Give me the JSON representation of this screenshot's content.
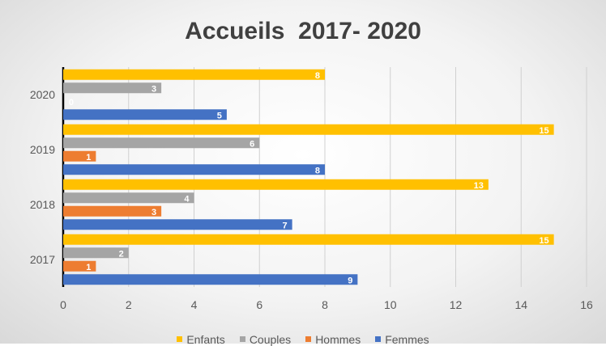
{
  "chart_data": {
    "type": "bar",
    "orientation": "horizontal",
    "title": "Accueils  2017- 2020",
    "categories": [
      "2017",
      "2018",
      "2019",
      "2020"
    ],
    "series": [
      {
        "name": "Femmes",
        "values": [
          9,
          7,
          8,
          5
        ],
        "color": "#4472c4"
      },
      {
        "name": "Hommes",
        "values": [
          1,
          3,
          1,
          0
        ],
        "color": "#ed7d31"
      },
      {
        "name": "Couples",
        "values": [
          2,
          4,
          6,
          3
        ],
        "color": "#a5a5a5"
      },
      {
        "name": "Enfants",
        "values": [
          15,
          13,
          15,
          8
        ],
        "color": "#ffc000"
      }
    ],
    "xlim": [
      0,
      16
    ],
    "xticks": [
      "0",
      "2",
      "4",
      "6",
      "8",
      "10",
      "12",
      "14",
      "16"
    ],
    "legend_order": [
      "Enfants",
      "Couples",
      "Hommes",
      "Femmes"
    ],
    "legend_position": "bottom",
    "gridlines": "vertical"
  }
}
